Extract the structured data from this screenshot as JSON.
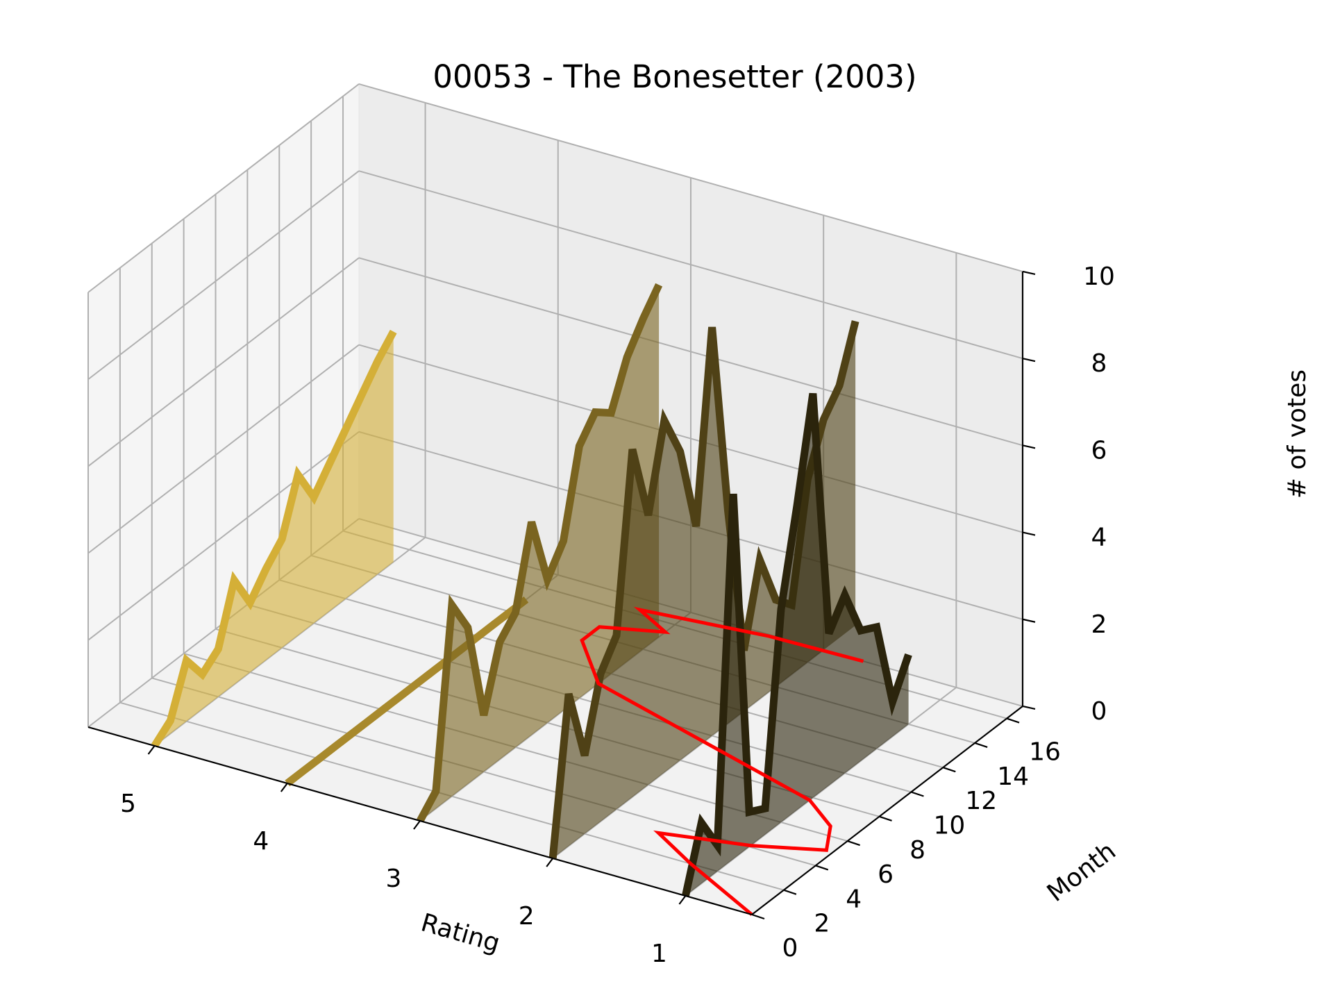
{
  "chart_data": {
    "type": "line",
    "title": "00053 - The Bonesetter (2003)",
    "xlabel": "Rating",
    "ylabel": "Month",
    "zlabel": "# of votes",
    "x_ticks": [
      "5",
      "4",
      "3",
      "2",
      "1"
    ],
    "y_ticks": [
      "0",
      "2",
      "4",
      "6",
      "8",
      "10",
      "12",
      "14",
      "16"
    ],
    "z_ticks": [
      "0",
      "2",
      "4",
      "6",
      "8",
      "10"
    ],
    "xlim": [
      0.5,
      5.5
    ],
    "ylim": [
      0,
      17
    ],
    "zlim": [
      0,
      10
    ],
    "grid": true,
    "series": [
      {
        "rating": 5,
        "color": "#d4af37",
        "values": [
          0,
          0.3,
          1.4,
          0.8,
          1.1,
          2.4,
          1.6,
          2.1,
          2.5,
          3.7,
          2.9,
          3.4,
          3.9,
          4.4,
          4.9,
          5.3
        ]
      },
      {
        "rating": 4,
        "color": "#a8892c",
        "values": [
          0,
          0,
          0,
          0,
          0,
          0,
          0,
          0,
          0,
          0,
          0,
          0,
          0,
          0,
          0,
          0
        ]
      },
      {
        "rating": 3,
        "color": "#7a6420",
        "values": [
          0,
          0.4,
          4.4,
          3.6,
          1.3,
          2.7,
          3.1,
          4.9,
          3.3,
          3.9,
          5.8,
          6.3,
          6.0,
          7.0,
          7.6,
          8.1
        ]
      },
      {
        "rating": 2,
        "color": "#4f4116",
        "values": [
          0,
          3.5,
          1.8,
          3.4,
          4.0,
          8.0,
          6.2,
          8.1,
          7.1,
          5.1,
          9.4,
          4.9,
          1.4,
          3.2,
          2.0,
          1.6,
          4.2,
          5.3,
          5.8,
          7.0
        ]
      },
      {
        "rating": 1,
        "color": "#2b240c",
        "values": [
          0,
          1.4,
          0.6,
          8.4,
          0.8,
          0.6,
          4.9,
          7.0,
          9.3,
          3.5,
          4.1,
          3.0,
          2.8,
          0.8,
          1.6
        ]
      }
    ],
    "cumulative_line": {
      "color": "#ff0000",
      "points": [
        [
          0.5,
          0
        ],
        [
          1.2,
          2.0
        ],
        [
          1.6,
          3.3
        ],
        [
          1.0,
          4.1
        ],
        [
          0.55,
          5.1
        ],
        [
          0.7,
          6.6
        ],
        [
          1.0,
          7.8
        ],
        [
          2.0,
          9.5
        ],
        [
          3.0,
          11.2
        ],
        [
          3.4,
          13.5
        ],
        [
          3.4,
          14.6
        ],
        [
          3.0,
          15.4
        ],
        [
          3.3,
          16.3
        ],
        [
          2.4,
          16.9
        ],
        [
          1.7,
          17.0
        ]
      ]
    }
  }
}
